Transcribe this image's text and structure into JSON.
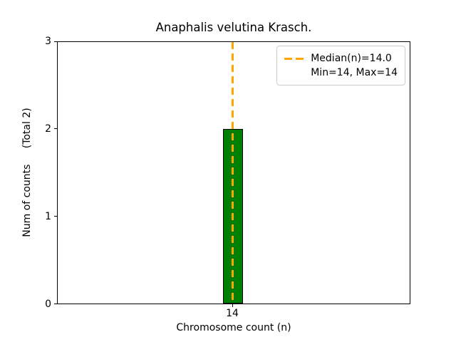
{
  "chart_data": {
    "type": "bar",
    "title": "Anaphalis velutina Krasch.",
    "xlabel": "Chromosome count (n)",
    "ylabel": "Num of counts     (Total 2)",
    "categories": [
      14
    ],
    "values": [
      2
    ],
    "total_counts": 2,
    "ylim": [
      0,
      3
    ],
    "ytick_labels": [
      "0",
      "1",
      "2",
      "3"
    ],
    "xtick_labels": [
      "14"
    ],
    "grid": false,
    "bar_color": "#008000",
    "bar_edge_color": "#000000",
    "median_line": {
      "value": 14.0,
      "color": "#FFA500",
      "style": "dashed",
      "orientation": "vertical"
    },
    "legend": {
      "position": "upper right",
      "entries": [
        {
          "marker": "orange-dashed-line",
          "label": "Median(n)=14.0"
        },
        {
          "marker": "none",
          "label": "Min=14, Max=14"
        }
      ]
    }
  }
}
